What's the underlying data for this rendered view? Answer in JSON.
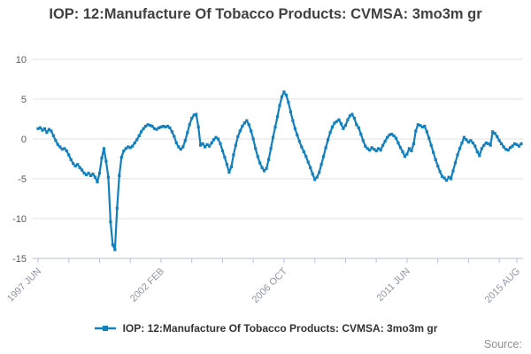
{
  "header": {
    "title": "IOP: 12:Manufacture Of Tobacco Products: CVMSA: 3mo3m gr"
  },
  "legend": {
    "label": "IOP: 12:Manufacture Of Tobacco Products: CVMSA: 3mo3m gr"
  },
  "footer": {
    "source_label": "Source:"
  },
  "colors": {
    "series_blue": "#1380BE",
    "grid": "#e1e1e1",
    "axis": "#b4c2d6",
    "y_tick_text": "#595959",
    "x_tick_text": "#8e97a4",
    "title_text": "#414042"
  },
  "chart_data": {
    "type": "line",
    "title": "IOP: 12:Manufacture Of Tobacco Products: CVMSA: 3mo3m gr",
    "xlabel": "",
    "ylabel": "",
    "grid": "horizontal",
    "legend_position": "bottom",
    "x_axis": {
      "frequency": "monthly",
      "start": "1997-06",
      "end": "2015-10",
      "tick_labels": [
        "1997 JUN",
        "2002 FEB",
        "2006 OCT",
        "2011 JUN",
        "2015 AUG"
      ],
      "labeled_month_indices": [
        0,
        56,
        112,
        168,
        218
      ],
      "minor_tick_every_months": 14
    },
    "y_axis": {
      "ticks": [
        10,
        5,
        0,
        -5,
        -10,
        -15
      ],
      "ylim": [
        -15,
        10
      ]
    },
    "series": [
      {
        "name": "IOP: 12:Manufacture Of Tobacco Products: CVMSA: 3mo3m gr",
        "color": "#1380BE",
        "marker": "square",
        "values": [
          1.3,
          1.4,
          1.1,
          1.3,
          0.8,
          1.2,
          1.0,
          0.4,
          -0.2,
          -0.7,
          -1.0,
          -1.3,
          -1.2,
          -1.5,
          -2.0,
          -2.6,
          -3.1,
          -3.4,
          -3.2,
          -3.6,
          -3.9,
          -4.3,
          -4.5,
          -4.3,
          -4.6,
          -4.4,
          -4.8,
          -5.4,
          -4.3,
          -2.4,
          -1.2,
          -2.8,
          -4.8,
          -10.4,
          -13.3,
          -13.9,
          -8.7,
          -4.6,
          -2.3,
          -1.5,
          -1.2,
          -1.0,
          -1.1,
          -0.9,
          -0.5,
          -0.1,
          0.4,
          0.9,
          1.3,
          1.6,
          1.8,
          1.7,
          1.6,
          1.3,
          1.2,
          1.4,
          1.5,
          1.6,
          1.5,
          1.6,
          1.4,
          0.9,
          0.3,
          -0.5,
          -1.0,
          -1.3,
          -1.0,
          -0.2,
          0.8,
          1.8,
          2.6,
          3.0,
          3.1,
          1.5,
          -0.8,
          -0.6,
          -1.0,
          -0.7,
          -0.9,
          -0.5,
          -0.1,
          0.2,
          0.0,
          -0.6,
          -1.5,
          -2.3,
          -3.2,
          -4.2,
          -3.5,
          -2.0,
          -0.8,
          0.3,
          1.0,
          1.6,
          2.0,
          2.3,
          1.8,
          1.0,
          0.0,
          -1.2,
          -2.2,
          -3.0,
          -3.6,
          -4.0,
          -3.7,
          -2.6,
          -1.2,
          0.2,
          1.5,
          2.8,
          4.2,
          5.3,
          5.9,
          5.5,
          4.6,
          3.4,
          2.3,
          1.3,
          0.5,
          -0.3,
          -1.0,
          -1.6,
          -2.2,
          -2.9,
          -3.6,
          -4.4,
          -5.1,
          -4.8,
          -4.2,
          -3.2,
          -2.2,
          -1.1,
          -0.1,
          0.8,
          1.5,
          2.0,
          2.2,
          2.4,
          1.9,
          1.3,
          1.7,
          2.4,
          2.9,
          3.1,
          2.6,
          1.8,
          1.4,
          0.6,
          -0.2,
          -0.9,
          -1.2,
          -1.4,
          -1.1,
          -1.3,
          -1.5,
          -1.2,
          -1.4,
          -0.8,
          -0.3,
          0.2,
          0.5,
          0.6,
          0.4,
          0.1,
          -0.5,
          -1.1,
          -1.6,
          -2.2,
          -1.9,
          -1.2,
          -1.5,
          -0.6,
          1.0,
          1.8,
          1.7,
          1.5,
          1.6,
          0.9,
          0.1,
          -0.8,
          -1.7,
          -2.6,
          -3.4,
          -4.1,
          -4.7,
          -4.9,
          -5.2,
          -4.8,
          -5.0,
          -4.0,
          -3.0,
          -2.0,
          -1.2,
          -0.5,
          0.2,
          -0.1,
          -0.4,
          -0.2,
          -0.5,
          -0.9,
          -1.6,
          -2.1,
          -1.2,
          -0.8,
          -0.5,
          -0.6,
          -0.8,
          0.9,
          0.7,
          0.3,
          -0.2,
          -0.6,
          -1.0,
          -1.3,
          -1.4,
          -1.1,
          -0.9,
          -0.6,
          -0.7,
          -0.9,
          -0.6
        ]
      }
    ]
  }
}
